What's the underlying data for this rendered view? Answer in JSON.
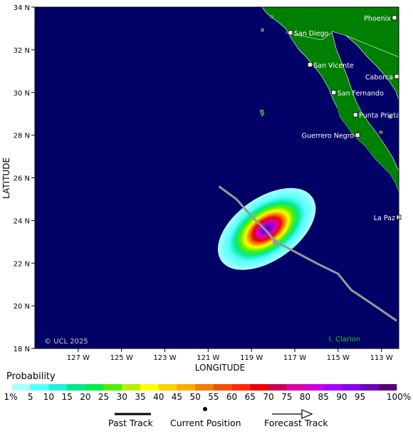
{
  "map": {
    "copyright": "© UCL 2025",
    "x_axis_label": "LONGITUDE",
    "y_axis_label": "LATITUDE",
    "lon_range": [
      -129,
      -112.2
    ],
    "lat_range": [
      18,
      34
    ],
    "x_ticks": [
      {
        "value": -127,
        "label": "127 W"
      },
      {
        "value": -125,
        "label": "125 W"
      },
      {
        "value": -123,
        "label": "123 W"
      },
      {
        "value": -121,
        "label": "121 W"
      },
      {
        "value": -119,
        "label": "119 W"
      },
      {
        "value": -117,
        "label": "117 W"
      },
      {
        "value": -115,
        "label": "115 W"
      },
      {
        "value": -113,
        "label": "113 W"
      }
    ],
    "y_ticks": [
      {
        "value": 18,
        "label": "18 N"
      },
      {
        "value": 20,
        "label": "20 N"
      },
      {
        "value": 22,
        "label": "22 N"
      },
      {
        "value": 24,
        "label": "24 N"
      },
      {
        "value": 26,
        "label": "26 N"
      },
      {
        "value": 28,
        "label": "28 N"
      },
      {
        "value": 30,
        "label": "30 N"
      },
      {
        "value": 32,
        "label": "32 N"
      },
      {
        "value": 34,
        "label": "34 N"
      }
    ],
    "cities": [
      {
        "name": "Phoenix",
        "lon": -112.4,
        "lat": 33.5,
        "label_side": "left"
      },
      {
        "name": "San Diego",
        "lon": -117.2,
        "lat": 32.8,
        "label_side": "right"
      },
      {
        "name": "San Vicente",
        "lon": -116.3,
        "lat": 31.3,
        "label_side": "right"
      },
      {
        "name": "Caborca",
        "lon": -112.3,
        "lat": 30.75,
        "label_side": "left"
      },
      {
        "name": "San Fernando",
        "lon": -115.2,
        "lat": 30.0,
        "label_side": "right"
      },
      {
        "name": "Punta Prieta",
        "lon": -114.2,
        "lat": 28.95,
        "label_side": "right"
      },
      {
        "name": "Guerrero Negro",
        "lon": -114.1,
        "lat": 28.0,
        "label_side": "left"
      },
      {
        "name": "La Paz",
        "lon": -112.2,
        "lat": 24.15,
        "label_side": "left"
      },
      {
        "name": "I. Clarion",
        "lon": -114.7,
        "lat": 18.3,
        "label_side": "center",
        "green": true
      }
    ],
    "track": {
      "past": [
        [
          -120.5,
          25.6
        ],
        [
          -119.7,
          25.0
        ],
        [
          -119.0,
          24.2
        ],
        [
          -118.3,
          23.5
        ],
        [
          -117.9,
          23.0
        ]
      ],
      "current": [
        -117.9,
        23.0
      ],
      "forecast": [
        [
          -117.9,
          23.0
        ],
        [
          -117.3,
          22.7
        ],
        [
          -116.0,
          22.0
        ],
        [
          -115.0,
          21.5
        ],
        [
          -114.4,
          20.75
        ],
        [
          -113.3,
          20.0
        ],
        [
          -112.3,
          19.3
        ]
      ]
    },
    "probability_blob": {
      "center": [
        -117.9,
        23.0
      ],
      "angle_deg": -35
    }
  },
  "legend": {
    "title": "Probability",
    "labels": [
      "1%",
      "5",
      "10",
      "15",
      "20",
      "25",
      "30",
      "35",
      "40",
      "45",
      "50",
      "55",
      "60",
      "65",
      "70",
      "75",
      "80",
      "85",
      "90",
      "95",
      "100%"
    ],
    "colors": [
      "#aaffff",
      "#55ffff",
      "#22f0d8",
      "#00e890",
      "#00ee44",
      "#55ee00",
      "#bbee00",
      "#ffff00",
      "#ffd000",
      "#ffaa00",
      "#f08000",
      "#f05000",
      "#ff2a00",
      "#ee0000",
      "#cc0055",
      "#dd00aa",
      "#cc00dd",
      "#aa00ff",
      "#8a00ee",
      "#7000bb",
      "#550077"
    ]
  },
  "key": {
    "past_track": "Past Track",
    "current_position": "Current Position",
    "forecast_track": "Forecast Track"
  },
  "colors": {
    "ocean": "#000066",
    "land": "#008000",
    "track": "#999999"
  }
}
